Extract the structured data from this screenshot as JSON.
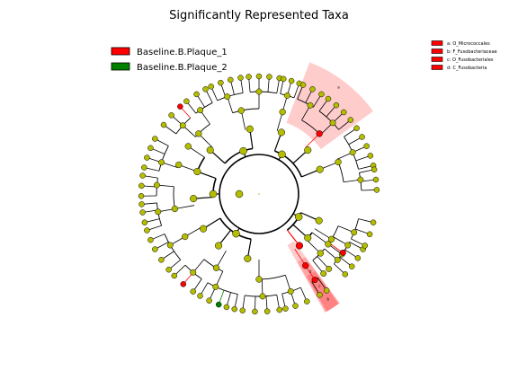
{
  "chart_data": {
    "type": "cladogram",
    "title": "Significantly Represented Taxa",
    "groups": [
      {
        "name": "Baseline.B.Plaque_1",
        "color": "#ff0000"
      },
      {
        "name": "Baseline.B.Plaque_2",
        "color": "#008000"
      }
    ],
    "node_colors": {
      "default": "#b5bd00",
      "enriched_1": "#ff0000",
      "enriched_2": "#008000"
    },
    "clade_labels": [
      {
        "key": "a",
        "text": "a: O_Micrococcales",
        "group": "Baseline.B.Plaque_1"
      },
      {
        "key": "b",
        "text": "b: F_Fusobacteriaceae",
        "group": "Baseline.B.Plaque_1"
      },
      {
        "key": "c",
        "text": "c: O_Fusobacteriales",
        "group": "Baseline.B.Plaque_1"
      },
      {
        "key": "d",
        "text": "d: C_Fusobacteria",
        "group": "Baseline.B.Plaque_1"
      }
    ],
    "highlight_letters": [
      "a",
      "b",
      "c",
      "d"
    ],
    "enriched_leaf_counts": {
      "Baseline.B.Plaque_1": 3,
      "Baseline.B.Plaque_2": 1
    }
  }
}
